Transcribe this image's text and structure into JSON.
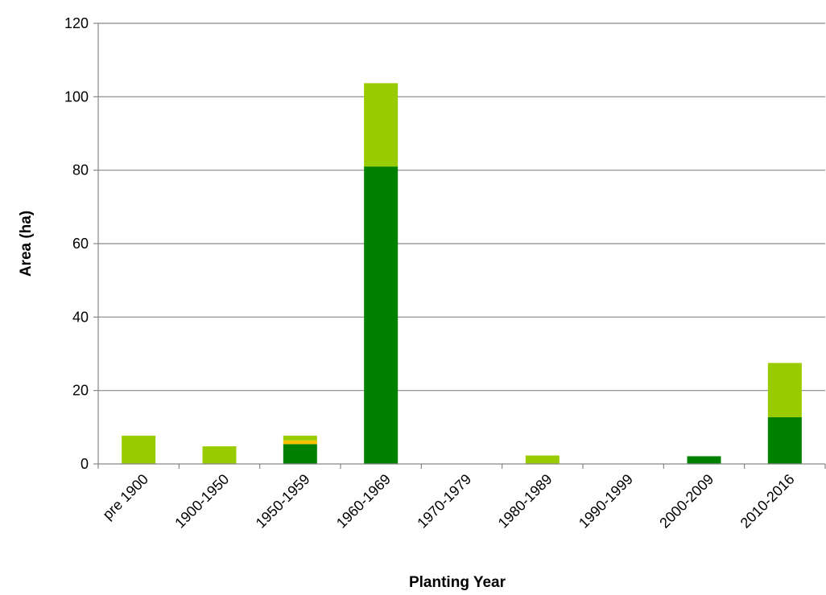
{
  "chart_data": {
    "type": "bar",
    "stacked": true,
    "title": "",
    "xlabel": "Planting Year",
    "ylabel": "Area (ha)",
    "ylim": [
      0,
      120
    ],
    "yticks": [
      "0",
      "20",
      "40",
      "60",
      "80",
      "100",
      "120"
    ],
    "grid": true,
    "legend": "none",
    "categories": [
      "pre 1900",
      "1900-1950",
      "1950-1959",
      "1960-1969",
      "1970-1979",
      "1980-1989",
      "1990-1999",
      "2000-2009",
      "2010-2016"
    ],
    "series": [
      {
        "color": "#008000",
        "values": [
          0,
          0,
          5.4,
          81,
          0,
          0,
          0,
          2.1,
          12.7
        ]
      },
      {
        "color": "#ffc000",
        "values": [
          0,
          0,
          1.0,
          0,
          0,
          0,
          0,
          0,
          0
        ]
      },
      {
        "color": "#99cc00",
        "values": [
          7.7,
          4.8,
          1.3,
          22.7,
          0,
          2.3,
          0,
          0,
          14.8
        ]
      }
    ]
  }
}
